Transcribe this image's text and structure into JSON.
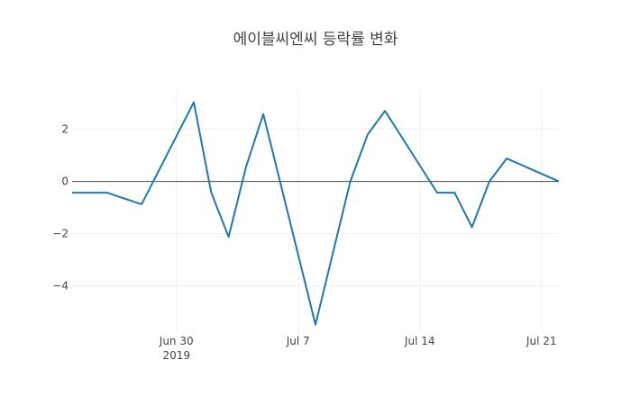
{
  "chart_data": {
    "type": "line",
    "title": "에이블씨엔씨 등락률 변화",
    "xlabel": "",
    "ylabel": "",
    "x_axis": {
      "range": [
        "2019-06-24",
        "2019-07-22"
      ],
      "ticks": [
        {
          "date": "2019-06-30",
          "label": "Jun 30",
          "sublabel": "2019"
        },
        {
          "date": "2019-07-07",
          "label": "Jul 7",
          "sublabel": ""
        },
        {
          "date": "2019-07-14",
          "label": "Jul 14",
          "sublabel": ""
        },
        {
          "date": "2019-07-21",
          "label": "Jul 21",
          "sublabel": ""
        }
      ]
    },
    "y_axis": {
      "range": [
        -5.8,
        3.5
      ],
      "ticks": [
        {
          "value": 2,
          "label": "2"
        },
        {
          "value": 0,
          "label": "0"
        },
        {
          "value": -2,
          "label": "−2"
        },
        {
          "value": -4,
          "label": "−4"
        }
      ],
      "zeroline": true
    },
    "grid": true,
    "series": [
      {
        "name": "",
        "color": "#1f77b4",
        "points": [
          {
            "x": "2019-06-24",
            "y": -0.43
          },
          {
            "x": "2019-06-26",
            "y": -0.43
          },
          {
            "x": "2019-06-28",
            "y": -0.87
          },
          {
            "x": "2019-07-01",
            "y": 3.03
          },
          {
            "x": "2019-07-02",
            "y": -0.42
          },
          {
            "x": "2019-07-03",
            "y": -2.12
          },
          {
            "x": "2019-07-04",
            "y": 0.55
          },
          {
            "x": "2019-07-05",
            "y": 2.58
          },
          {
            "x": "2019-07-08",
            "y": -5.48
          },
          {
            "x": "2019-07-10",
            "y": 0.0
          },
          {
            "x": "2019-07-11",
            "y": 1.8
          },
          {
            "x": "2019-07-12",
            "y": 2.7
          },
          {
            "x": "2019-07-15",
            "y": -0.43
          },
          {
            "x": "2019-07-16",
            "y": -0.43
          },
          {
            "x": "2019-07-17",
            "y": -1.75
          },
          {
            "x": "2019-07-18",
            "y": 0.0
          },
          {
            "x": "2019-07-19",
            "y": 0.88
          },
          {
            "x": "2019-07-22",
            "y": 0.0
          }
        ]
      }
    ]
  }
}
